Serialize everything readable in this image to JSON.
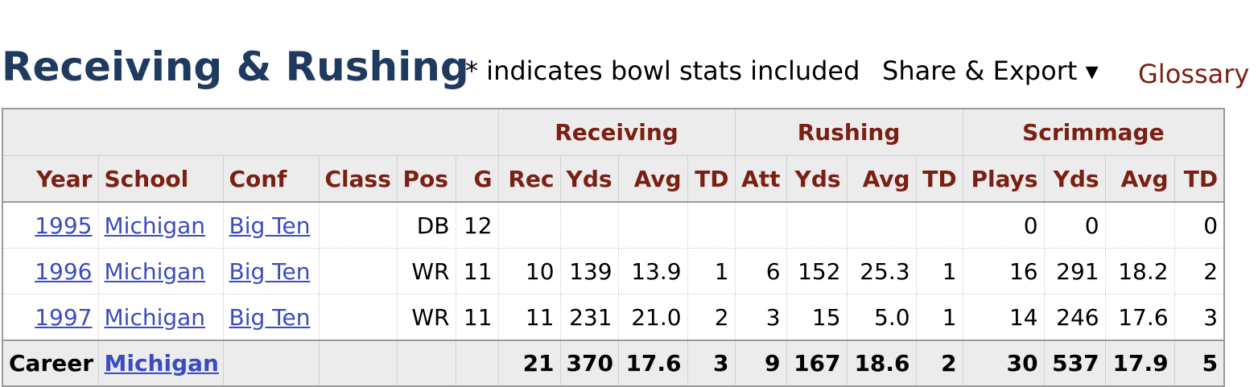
{
  "header": {
    "title": "Receiving & Rushing",
    "note": "* indicates bowl stats included",
    "share_export": "Share & Export ▾",
    "glossary": "Glossary"
  },
  "table": {
    "groups": {
      "receiving": "Receiving",
      "rushing": "Rushing",
      "scrimmage": "Scrimmage"
    },
    "columns": [
      "Year",
      "School",
      "Conf",
      "Class",
      "Pos",
      "G",
      "Rec",
      "Yds",
      "Avg",
      "TD",
      "Att",
      "Yds",
      "Avg",
      "TD",
      "Plays",
      "Yds",
      "Avg",
      "TD"
    ],
    "rows": [
      {
        "year": "1995",
        "school": "Michigan",
        "conf": "Big Ten",
        "class": "",
        "pos": "DB",
        "g": "12",
        "rec": "",
        "rec_yds": "",
        "rec_avg": "",
        "rec_td": "",
        "att": "",
        "rush_yds": "",
        "rush_avg": "",
        "rush_td": "",
        "plays": "0",
        "scrim_yds": "0",
        "scrim_avg": "",
        "scrim_td": "0"
      },
      {
        "year": "1996",
        "school": "Michigan",
        "conf": "Big Ten",
        "class": "",
        "pos": "WR",
        "g": "11",
        "rec": "10",
        "rec_yds": "139",
        "rec_avg": "13.9",
        "rec_td": "1",
        "att": "6",
        "rush_yds": "152",
        "rush_avg": "25.3",
        "rush_td": "1",
        "plays": "16",
        "scrim_yds": "291",
        "scrim_avg": "18.2",
        "scrim_td": "2"
      },
      {
        "year": "1997",
        "school": "Michigan",
        "conf": "Big Ten",
        "class": "",
        "pos": "WR",
        "g": "11",
        "rec": "11",
        "rec_yds": "231",
        "rec_avg": "21.0",
        "rec_td": "2",
        "att": "3",
        "rush_yds": "15",
        "rush_avg": "5.0",
        "rush_td": "1",
        "plays": "14",
        "scrim_yds": "246",
        "scrim_avg": "17.6",
        "scrim_td": "3"
      }
    ],
    "career": {
      "label": "Career",
      "school": "Michigan",
      "conf": "",
      "class": "",
      "pos": "",
      "g": "",
      "rec": "21",
      "rec_yds": "370",
      "rec_avg": "17.6",
      "rec_td": "3",
      "att": "9",
      "rush_yds": "167",
      "rush_avg": "18.6",
      "rush_td": "2",
      "plays": "30",
      "scrim_yds": "537",
      "scrim_avg": "17.9",
      "scrim_td": "5"
    }
  },
  "colors": {
    "title": "#1f3a5f",
    "header_text": "#7a1f12",
    "link": "#3b4cc0",
    "header_bg": "#ececec"
  }
}
